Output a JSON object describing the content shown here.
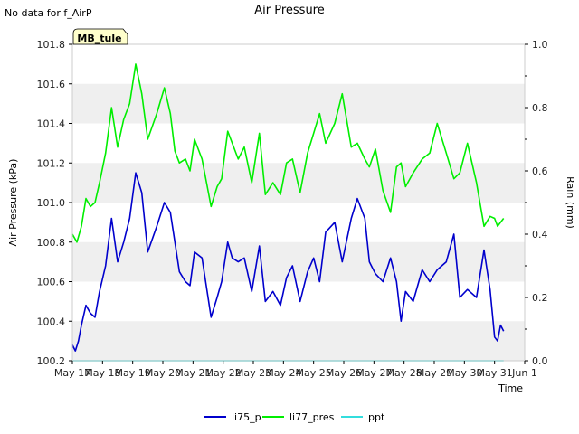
{
  "header_note": "No data for f_AirP",
  "station_badge": "MB_tule",
  "colors": {
    "li75_p": "#0000cc",
    "li77_pres": "#00ee00",
    "ppt": "#33dddd",
    "band": "#efefef",
    "badge_bg": "#ffffcc",
    "badge_text": "#880000"
  },
  "chart_data": {
    "type": "line",
    "title": "Air Pressure",
    "xlabel": "Time",
    "ylabel": "Air Pressure (kPa)",
    "y2label": "Rain (mm)",
    "xlim": [
      0,
      15
    ],
    "ylim": [
      100.2,
      101.8
    ],
    "y2lim": [
      0.0,
      1.0
    ],
    "x_ticks": [
      {
        "x": 0,
        "label": "May 17"
      },
      {
        "x": 1,
        "label": "May 18"
      },
      {
        "x": 2,
        "label": "May 19"
      },
      {
        "x": 3,
        "label": "May 20"
      },
      {
        "x": 4,
        "label": "May 21"
      },
      {
        "x": 5,
        "label": "May 22"
      },
      {
        "x": 6,
        "label": "May 23"
      },
      {
        "x": 7,
        "label": "May 24"
      },
      {
        "x": 8,
        "label": "May 25"
      },
      {
        "x": 9,
        "label": "May 26"
      },
      {
        "x": 10,
        "label": "May 27"
      },
      {
        "x": 11,
        "label": "May 28"
      },
      {
        "x": 12,
        "label": "May 29"
      },
      {
        "x": 13,
        "label": "May 30"
      },
      {
        "x": 14,
        "label": "May 31"
      },
      {
        "x": 15,
        "label": "Jun 1"
      }
    ],
    "y_ticks": [
      {
        "v": 100.2,
        "label": "100.2"
      },
      {
        "v": 100.4,
        "label": "100.4"
      },
      {
        "v": 100.6,
        "label": "100.6"
      },
      {
        "v": 100.8,
        "label": "100.8"
      },
      {
        "v": 101.0,
        "label": "101.0"
      },
      {
        "v": 101.2,
        "label": "101.2"
      },
      {
        "v": 101.4,
        "label": "101.4"
      },
      {
        "v": 101.6,
        "label": "101.6"
      },
      {
        "v": 101.8,
        "label": "101.8"
      }
    ],
    "y2_ticks": [
      {
        "v": 0.0,
        "label": "0.0"
      },
      {
        "v": 0.2,
        "label": "0.2"
      },
      {
        "v": 0.4,
        "label": "0.4"
      },
      {
        "v": 0.6,
        "label": "0.6"
      },
      {
        "v": 0.8,
        "label": "0.8"
      },
      {
        "v": 1.0,
        "label": "1.0"
      }
    ],
    "bands": [
      [
        100.2,
        100.4
      ],
      [
        100.6,
        100.8
      ],
      [
        101.0,
        101.2
      ],
      [
        101.4,
        101.6
      ]
    ],
    "series": [
      {
        "name": "li75_p",
        "axis": "left",
        "x": [
          0,
          0.1,
          0.2,
          0.3,
          0.45,
          0.6,
          0.75,
          0.9,
          1.1,
          1.3,
          1.5,
          1.7,
          1.9,
          2.1,
          2.3,
          2.5,
          2.8,
          3.05,
          3.25,
          3.4,
          3.55,
          3.75,
          3.9,
          4.05,
          4.3,
          4.6,
          4.8,
          4.95,
          5.15,
          5.3,
          5.5,
          5.7,
          5.95,
          6.2,
          6.4,
          6.65,
          6.9,
          7.1,
          7.3,
          7.55,
          7.8,
          8.0,
          8.2,
          8.4,
          8.7,
          8.95,
          9.25,
          9.45,
          9.7,
          9.85,
          10.05,
          10.3,
          10.55,
          10.75,
          10.9,
          11.05,
          11.3,
          11.6,
          11.85,
          12.1,
          12.4,
          12.65,
          12.85,
          13.1,
          13.4,
          13.65,
          13.85,
          14.0,
          14.1,
          14.2,
          14.3
        ],
        "values": [
          100.28,
          100.25,
          100.3,
          100.38,
          100.48,
          100.44,
          100.42,
          100.55,
          100.68,
          100.92,
          100.7,
          100.8,
          100.92,
          101.15,
          101.05,
          100.75,
          100.88,
          101.0,
          100.95,
          100.8,
          100.65,
          100.6,
          100.58,
          100.75,
          100.72,
          100.42,
          100.52,
          100.6,
          100.8,
          100.72,
          100.7,
          100.72,
          100.55,
          100.78,
          100.5,
          100.55,
          100.48,
          100.62,
          100.68,
          100.5,
          100.65,
          100.72,
          100.6,
          100.85,
          100.9,
          100.7,
          100.92,
          101.02,
          100.92,
          100.7,
          100.64,
          100.6,
          100.72,
          100.6,
          100.4,
          100.55,
          100.5,
          100.66,
          100.6,
          100.66,
          100.7,
          100.84,
          100.52,
          100.56,
          100.52,
          100.76,
          100.56,
          100.32,
          100.3,
          100.38,
          100.35
        ]
      },
      {
        "name": "li77_pres",
        "axis": "left",
        "x": [
          0,
          0.15,
          0.3,
          0.45,
          0.6,
          0.75,
          0.9,
          1.1,
          1.3,
          1.5,
          1.7,
          1.9,
          2.1,
          2.3,
          2.5,
          2.8,
          3.05,
          3.25,
          3.4,
          3.55,
          3.75,
          3.9,
          4.05,
          4.3,
          4.6,
          4.8,
          4.95,
          5.15,
          5.3,
          5.5,
          5.7,
          5.95,
          6.2,
          6.4,
          6.65,
          6.9,
          7.1,
          7.3,
          7.55,
          7.8,
          8.0,
          8.2,
          8.4,
          8.7,
          8.95,
          9.25,
          9.45,
          9.7,
          9.85,
          10.05,
          10.3,
          10.55,
          10.75,
          10.9,
          11.05,
          11.3,
          11.6,
          11.85,
          12.1,
          12.4,
          12.65,
          12.85,
          13.1,
          13.4,
          13.65,
          13.85,
          14.0,
          14.1,
          14.2,
          14.3
        ],
        "values": [
          100.84,
          100.8,
          100.88,
          101.02,
          100.98,
          101.0,
          101.1,
          101.25,
          101.48,
          101.28,
          101.42,
          101.5,
          101.7,
          101.55,
          101.32,
          101.45,
          101.58,
          101.45,
          101.26,
          101.2,
          101.22,
          101.16,
          101.32,
          101.22,
          100.98,
          101.08,
          101.12,
          101.36,
          101.3,
          101.22,
          101.28,
          101.1,
          101.35,
          101.04,
          101.1,
          101.04,
          101.2,
          101.22,
          101.05,
          101.25,
          101.35,
          101.45,
          101.3,
          101.4,
          101.55,
          101.28,
          101.3,
          101.22,
          101.18,
          101.27,
          101.06,
          100.95,
          101.18,
          101.2,
          101.08,
          101.15,
          101.22,
          101.25,
          101.4,
          101.25,
          101.12,
          101.15,
          101.3,
          101.1,
          100.88,
          100.93,
          100.92,
          100.88,
          100.9,
          100.92
        ]
      },
      {
        "name": "ppt",
        "axis": "right",
        "x": [
          0,
          14.3
        ],
        "values": [
          0.0,
          0.0
        ]
      }
    ],
    "legend": [
      "li75_p",
      "li77_pres",
      "ppt"
    ],
    "legend_position": "bottom-center",
    "grid": false
  }
}
